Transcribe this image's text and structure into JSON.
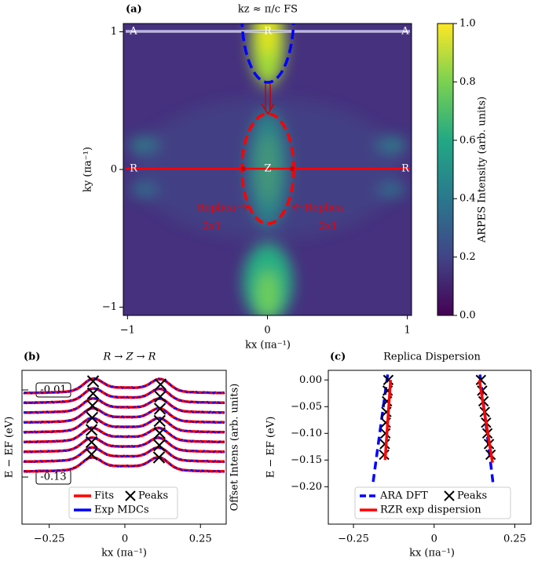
{
  "chart_data": [
    {
      "type": "heatmap",
      "panel": "(a)",
      "title": "kz ≈ π/c FS",
      "xlabel": "kx (πa⁻¹)",
      "ylabel": "ky (πa⁻¹)",
      "xlim": [
        -1.03,
        1.03
      ],
      "ylim": [
        -1.06,
        1.06
      ],
      "xticks": [
        {
          "value": -1,
          "label": "−1"
        },
        0,
        1
      ],
      "yticks": [
        {
          "value": -1,
          "label": "−1"
        },
        0,
        1
      ],
      "colorbar_label": "ARPES Intensity (arb. units)",
      "clim": [
        0,
        1
      ],
      "cticks": [
        {
          "value": 0,
          "label": "0.0"
        },
        0.2,
        0.4,
        0.6,
        0.8,
        {
          "value": 1,
          "label": "1.0"
        }
      ],
      "colormap": [
        "#440154",
        "#414487",
        "#2a788e",
        "#22a884",
        "#7ad151",
        "#fde725"
      ],
      "annotations": [
        "A",
        "R",
        "A",
        "R",
        "Z",
        "R",
        "Replica",
        "2x1",
        "Replica",
        "2x1"
      ]
    },
    {
      "type": "mdc",
      "panel": "(b)",
      "title": "R → Z → R",
      "xlabel": "kx (πa⁻¹)",
      "ylabel": "E − EF (eV)",
      "y2label": "Offset Intens (arb. units)",
      "xlim": [
        -0.34,
        0.335
      ],
      "xticks": [
        {
          "value": -0.25,
          "label": "−0.25"
        },
        0,
        0.25
      ],
      "annotations": [
        "-0.01",
        "-0.13"
      ],
      "series": [
        {
          "name": "Fits",
          "color": "#ff0000"
        },
        {
          "name": "Peaks",
          "color": "#000000",
          "x": [
            -0.105,
            -0.105,
            -0.107,
            -0.108,
            -0.11,
            -0.11,
            -0.11,
            0.118,
            0.117,
            0.116,
            0.115,
            0.115,
            0.114,
            0.113
          ]
        },
        {
          "name": "Exp MDCs",
          "color": "#0000ff"
        }
      ]
    },
    {
      "type": "line",
      "panel": "(c)",
      "title": "Replica Dispersion",
      "xlabel": "kx (πa⁻¹)",
      "ylabel": "E − EF (eV)",
      "xlim": [
        -0.328,
        0.3
      ],
      "ylim": [
        -0.27,
        0.018
      ],
      "xticks": [
        {
          "value": -0.25,
          "label": "−0.25"
        },
        0,
        0.25
      ],
      "yticks": [
        {
          "value": 0,
          "label": "0.00"
        },
        {
          "value": -0.05,
          "label": "−0.05"
        },
        {
          "value": -0.1,
          "label": "−0.10"
        },
        {
          "value": -0.15,
          "label": "−0.15"
        },
        {
          "value": -0.2,
          "label": "−0.20"
        }
      ],
      "series": [
        {
          "name": "ARA DFT",
          "color": "#0000ff",
          "style": "dashed",
          "x": [
            -0.144,
            -0.19,
            null,
            0.142,
            0.183
          ],
          "values": [
            0.01,
            -0.195,
            null,
            0.01,
            -0.195
          ]
        },
        {
          "name": "Peaks",
          "color": "#000000",
          "style": "marker",
          "x": [
            -0.142,
            -0.144,
            -0.146,
            -0.148,
            -0.15,
            -0.151,
            -0.153,
            -0.155,
            0.145,
            0.149,
            0.153,
            0.157,
            0.161,
            0.165,
            0.17,
            0.175
          ],
          "values": [
            0,
            -0.02,
            -0.04,
            -0.06,
            -0.08,
            -0.1,
            -0.12,
            -0.14,
            0,
            -0.02,
            -0.04,
            -0.06,
            -0.08,
            -0.1,
            -0.12,
            -0.14
          ]
        },
        {
          "name": "RZR exp dispersion",
          "color": "#ff0000",
          "style": "solid",
          "x": [
            -0.135,
            -0.152,
            null,
            0.14,
            0.181
          ],
          "values": [
            0,
            -0.15,
            null,
            0,
            -0.155
          ]
        }
      ]
    }
  ]
}
